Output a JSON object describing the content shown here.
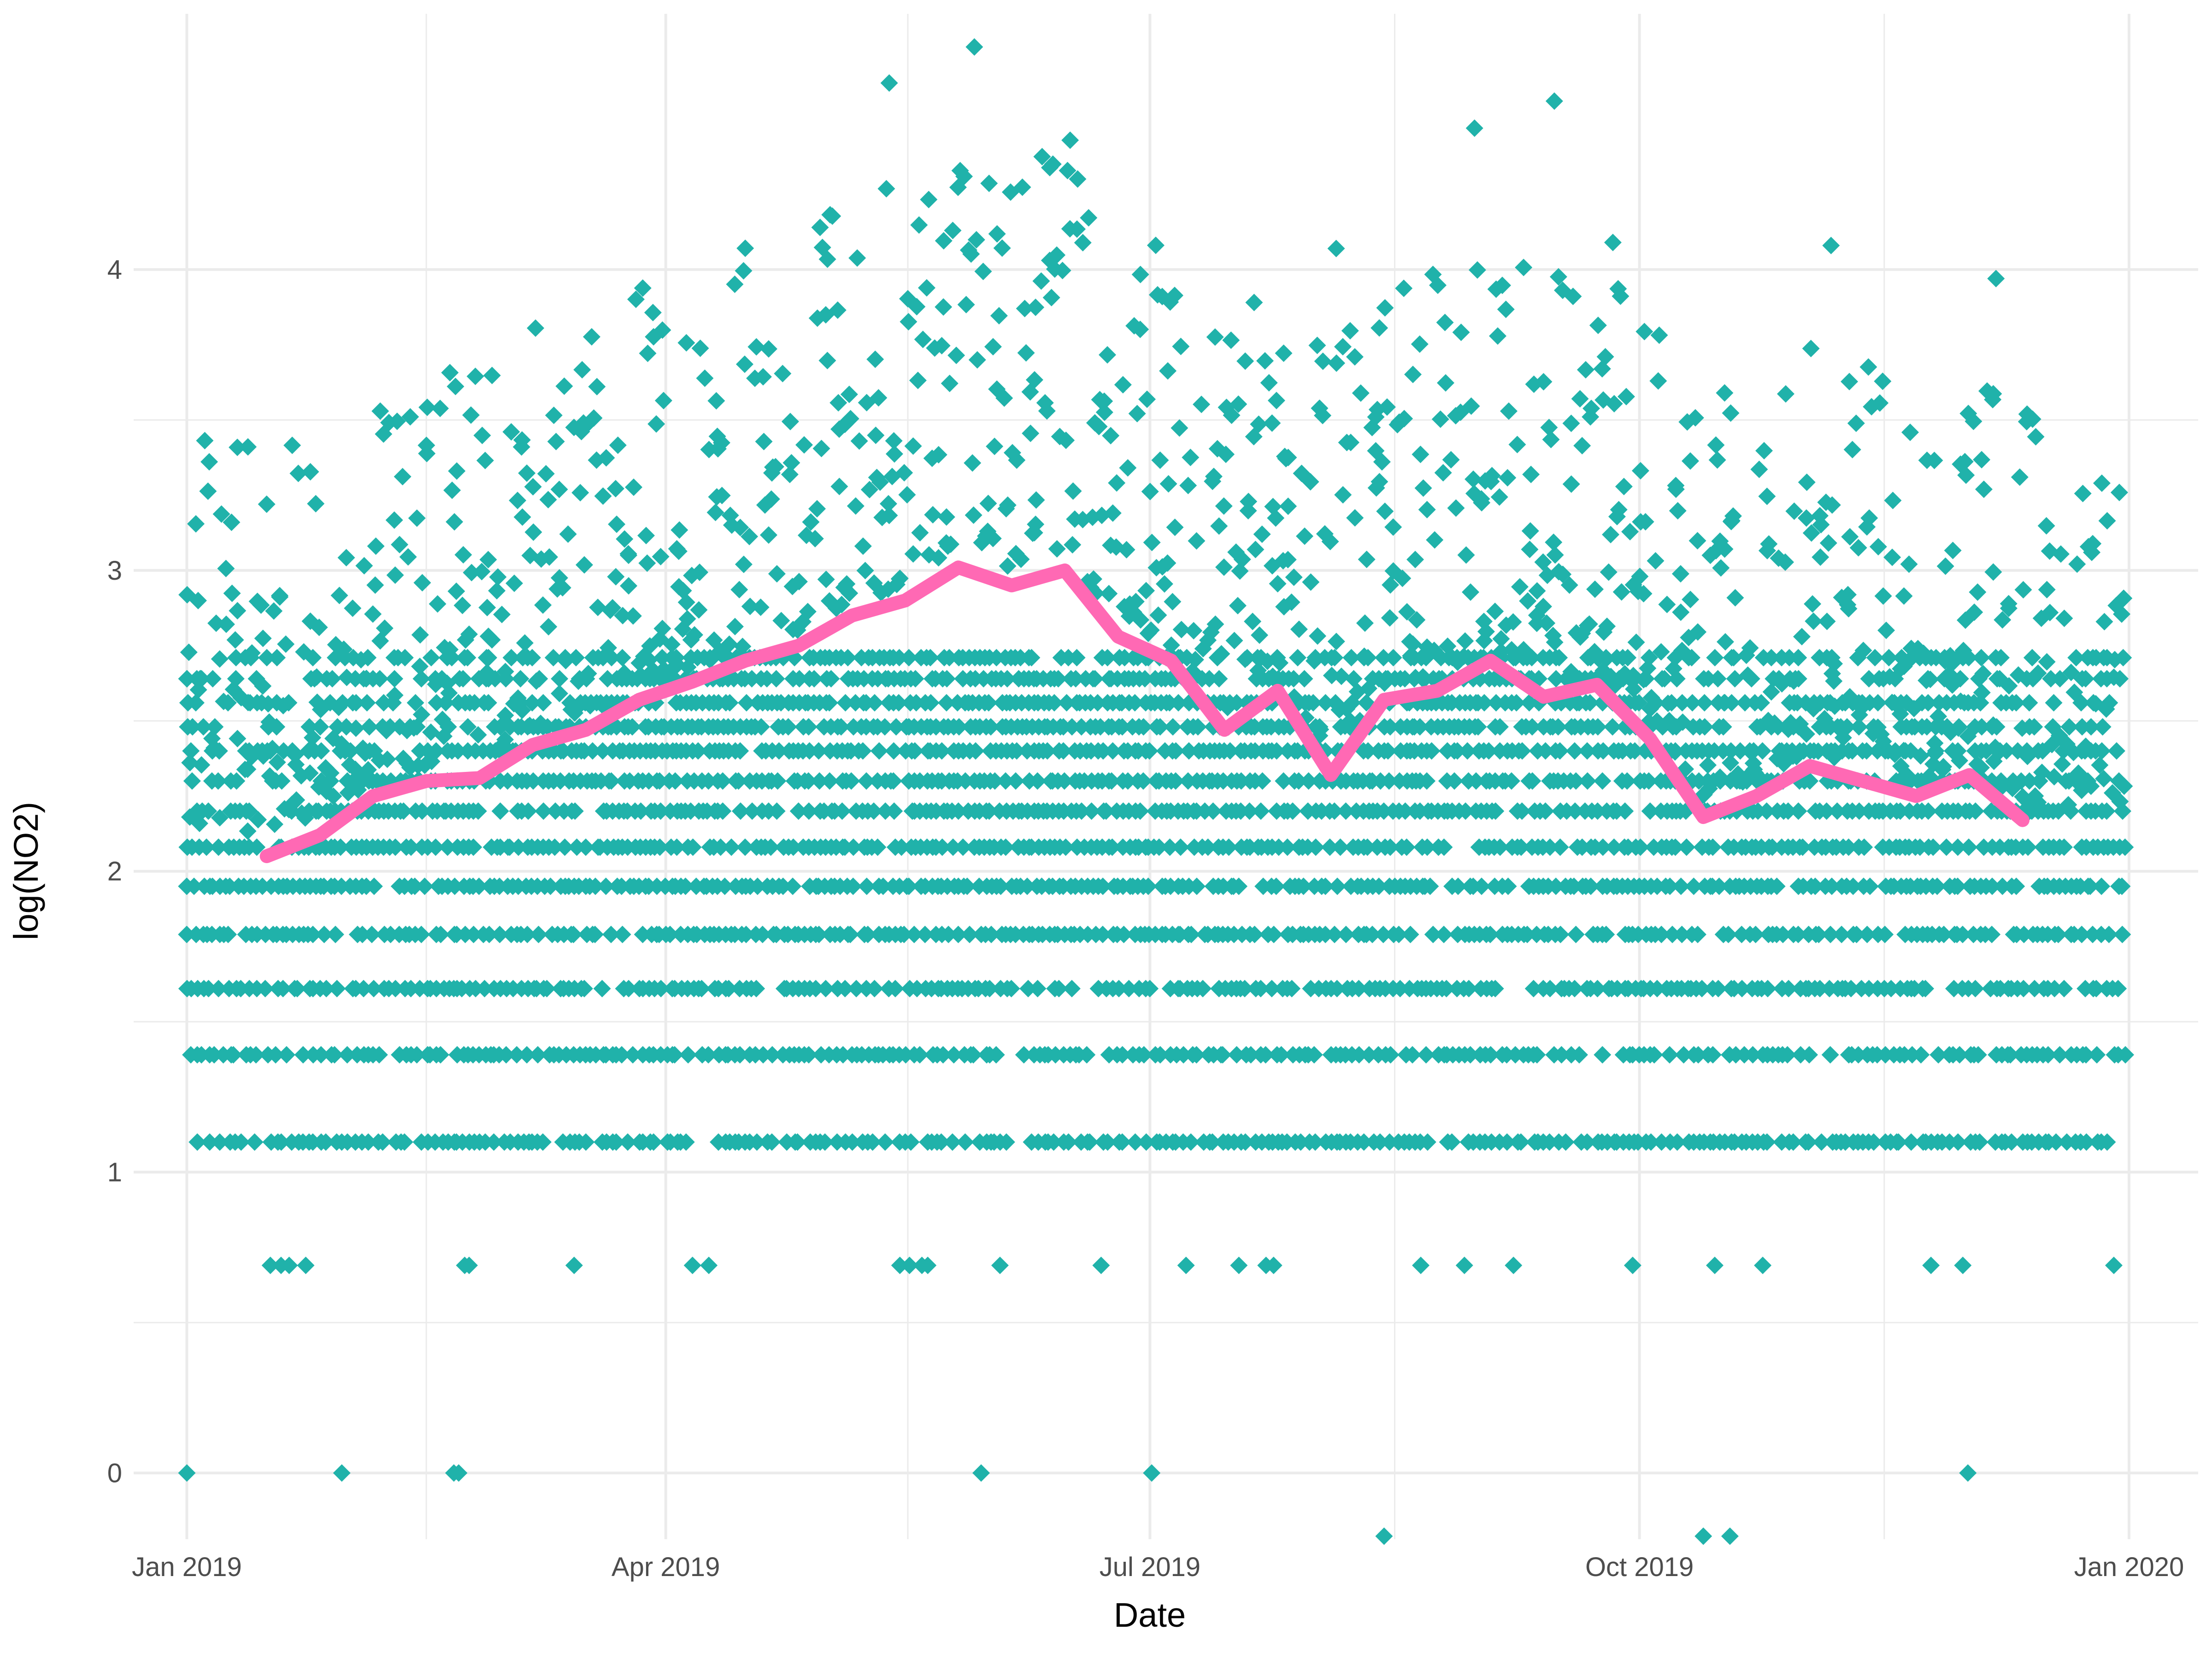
{
  "chart_data": {
    "type": "scatter",
    "title": "",
    "xlabel": "Date",
    "ylabel": "log(NO2)",
    "x_scale": "date",
    "xlim": [
      "2018-12-22",
      "2020-01-14"
    ],
    "ylim": [
      -0.22,
      4.85
    ],
    "x_ticks": [
      {
        "date": "2019-01-01",
        "label": "Jan 2019"
      },
      {
        "date": "2019-04-01",
        "label": "Apr 2019"
      },
      {
        "date": "2019-07-01",
        "label": "Jul 2019"
      },
      {
        "date": "2019-10-01",
        "label": "Oct 2019"
      },
      {
        "date": "2020-01-01",
        "label": "Jan 2020"
      }
    ],
    "y_ticks": [
      0,
      1,
      2,
      3,
      4
    ],
    "y_tick_labels": [
      "0",
      "1",
      "2",
      "3",
      "4"
    ],
    "grid": true,
    "legend": "none",
    "point_shape": "diamond",
    "colors": {
      "points": "#20b2aa",
      "trend": "#ff69b4",
      "grid": "#ebebeb",
      "background": "#ffffff"
    },
    "point_levels": [
      0,
      0.69,
      1.1,
      1.39,
      1.61,
      1.79,
      1.95,
      2.08,
      2.2,
      2.3,
      2.4,
      2.48,
      2.56,
      2.64,
      2.71
    ],
    "sample_points": [
      {
        "x": "2019-01-01",
        "y": 2.64
      },
      {
        "x": "2019-01-01",
        "y": 0
      },
      {
        "x": "2019-01-16",
        "y": 3.22
      },
      {
        "x": "2019-04-30",
        "y": 4.14
      },
      {
        "x": "2019-05-13",
        "y": 4.62
      },
      {
        "x": "2019-05-29",
        "y": 4.74
      },
      {
        "x": "2019-06-16",
        "y": 4.43
      },
      {
        "x": "2019-08-05",
        "y": 4.07
      },
      {
        "x": "2019-08-31",
        "y": 4.47
      },
      {
        "x": "2019-09-15",
        "y": 4.56
      },
      {
        "x": "2019-09-26",
        "y": 4.09
      },
      {
        "x": "2019-10-17",
        "y": 3.59
      },
      {
        "x": "2019-11-06",
        "y": 4.08
      },
      {
        "x": "2019-12-07",
        "y": 3.97
      },
      {
        "x": "2019-12-25",
        "y": 3.06
      },
      {
        "x": "2019-08-14",
        "y": -0.24
      },
      {
        "x": "2019-10-13",
        "y": -0.24
      },
      {
        "x": "2019-10-18",
        "y": -0.24
      }
    ],
    "trend_series": {
      "x": [
        "2019-01-16",
        "2019-01-26",
        "2019-02-05",
        "2019-02-15",
        "2019-02-25",
        "2019-03-07",
        "2019-03-17",
        "2019-03-27",
        "2019-04-06",
        "2019-04-16",
        "2019-04-26",
        "2019-05-06",
        "2019-05-16",
        "2019-05-26",
        "2019-06-05",
        "2019-06-15",
        "2019-06-25",
        "2019-07-05",
        "2019-07-15",
        "2019-07-25",
        "2019-08-04",
        "2019-08-14",
        "2019-08-24",
        "2019-09-03",
        "2019-09-13",
        "2019-09-23",
        "2019-10-03",
        "2019-10-13",
        "2019-10-23",
        "2019-11-02",
        "2019-11-12",
        "2019-11-22",
        "2019-12-02",
        "2019-12-12"
      ],
      "y": [
        2.05,
        2.12,
        2.25,
        2.3,
        2.31,
        2.42,
        2.47,
        2.57,
        2.63,
        2.7,
        2.75,
        2.85,
        2.9,
        3.01,
        2.95,
        3.0,
        2.78,
        2.7,
        2.47,
        2.6,
        2.32,
        2.57,
        2.6,
        2.7,
        2.58,
        2.62,
        2.44,
        2.18,
        2.25,
        2.35,
        2.3,
        2.25,
        2.32,
        2.17
      ]
    }
  }
}
